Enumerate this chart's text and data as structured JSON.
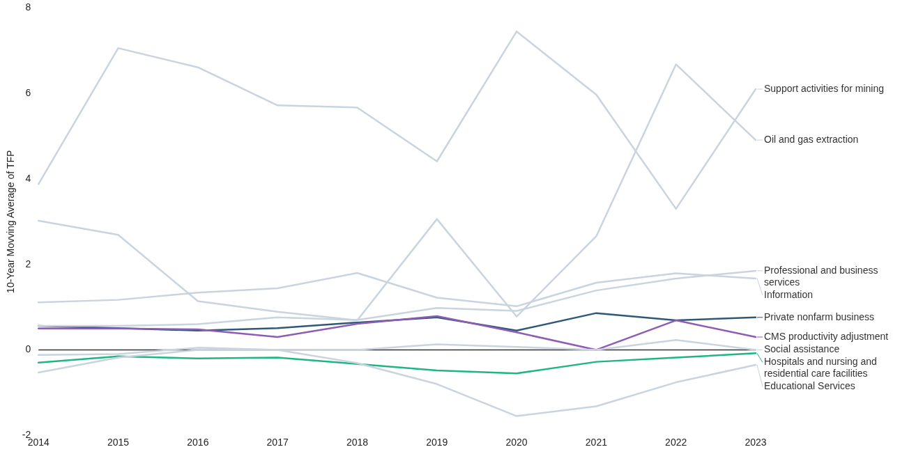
{
  "chart_data": {
    "type": "line",
    "ylabel": "10-Year Movving Average of TFP",
    "categories": [
      "2014",
      "2015",
      "2016",
      "2017",
      "2018",
      "2019",
      "2020",
      "2021",
      "2022",
      "2023"
    ],
    "ylim": [
      -2,
      8
    ],
    "yticks": [
      -2,
      0,
      2,
      4,
      6,
      8
    ],
    "grid": false,
    "legend": "right",
    "marker": "none",
    "line_style": "solid",
    "ref_lines": [
      {
        "axis": "y",
        "value": 0,
        "color": "#333333"
      }
    ],
    "series": [
      {
        "name": "Support activities for mining",
        "color": "#c9d4de",
        "values": [
          3.88,
          7.06,
          6.61,
          5.72,
          5.67,
          4.41,
          7.45,
          5.97,
          3.3,
          6.1
        ]
      },
      {
        "name": "Oil and gas extraction",
        "color": "#c9d4de",
        "values": [
          3.02,
          2.69,
          1.14,
          0.89,
          0.69,
          3.06,
          0.78,
          2.66,
          6.68,
          4.91
        ]
      },
      {
        "name": "Information",
        "color": "#c9d4de",
        "values": [
          1.11,
          1.17,
          1.34,
          1.44,
          1.8,
          1.22,
          1.02,
          1.57,
          1.79,
          1.67
        ]
      },
      {
        "name": "Professional and business services",
        "color": "#c9d4de",
        "values": [
          0.56,
          0.56,
          0.6,
          0.76,
          0.7,
          0.98,
          0.91,
          1.39,
          1.67,
          1.85
        ]
      },
      {
        "name": "Social assistance",
        "color": "#c9d4de",
        "values": [
          -0.12,
          -0.1,
          0.05,
          0,
          0,
          0.13,
          0.07,
          0,
          0.23,
          0
        ]
      },
      {
        "name": "Educational Services",
        "color": "#c9d4de",
        "values": [
          -0.53,
          -0.18,
          0,
          0,
          -0.31,
          -0.8,
          -1.55,
          -1.32,
          -0.76,
          -0.35
        ]
      },
      {
        "name": "Hospitals and nursing and residential care facilities",
        "color": "#1fb584",
        "values": [
          -0.3,
          -0.15,
          -0.2,
          -0.18,
          -0.33,
          -0.48,
          -0.55,
          -0.28,
          -0.18,
          -0.08
        ]
      },
      {
        "name": "CMS productivity adjustment",
        "color": "#8e5bb5",
        "values": [
          0.5,
          0.5,
          0.48,
          0.3,
          0.61,
          0.79,
          0.41,
          0,
          0.69,
          0.3
        ]
      },
      {
        "name": "Private nonfarm business",
        "color": "#2f5878",
        "values": [
          0.56,
          0.51,
          0.45,
          0.51,
          0.64,
          0.76,
          0.45,
          0.86,
          0.69,
          0.76
        ]
      }
    ]
  }
}
